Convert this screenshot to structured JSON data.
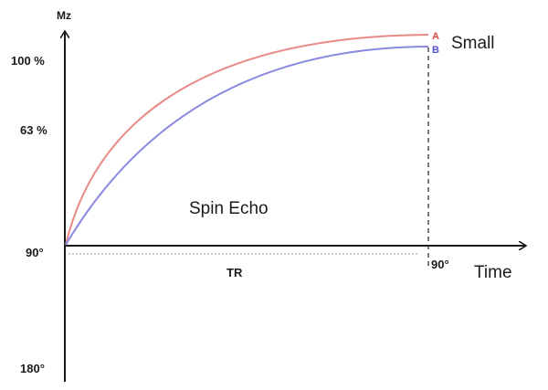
{
  "y_axis": {
    "label": "Mz",
    "ticks": [
      "100 %",
      "63 %",
      "90°",
      "180°"
    ]
  },
  "x_axis": {
    "label": "Time",
    "tr_label": "TR",
    "pulse_label": "90°"
  },
  "annotation": "Spin Echo",
  "curve_group_label": "Small",
  "curves": [
    {
      "name": "A",
      "color": "#e88a88"
    },
    {
      "name": "B",
      "color": "#8a8ae0"
    }
  ]
}
